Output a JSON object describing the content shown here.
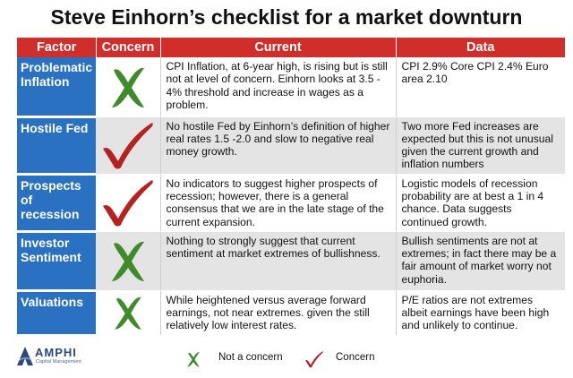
{
  "title": "Steve Einhorn’s checklist for a market downturn",
  "headers": {
    "factor": "Factor",
    "concern": "Concern",
    "current": "Current",
    "data": "Data"
  },
  "rows": [
    {
      "factor": "Problematic Inflation",
      "mark": "x-icon",
      "current": "CPI Inflation, at 6-year high, is rising but is still not at level of concern. Einhorn looks at 3.5 - 4% threshold  and increase in wages as a problem.",
      "data": "CPI 2.9% Core CPI 2.4% Euro area 2.10"
    },
    {
      "factor": "Hostile Fed",
      "mark": "check-icon",
      "current": "No hostile Fed by Einhorn’s definition of higher real rates 1.5 -2.0 and slow to negative real money growth.",
      "data": "Two more Fed increases are expected but this is not unusual given the current growth and inflation numbers"
    },
    {
      "factor": "Prospects of recession",
      "mark": "check-icon",
      "current": "No indicators to suggest higher prospects of recession; however, there is a general consensus that we are in the late stage of the current expansion.",
      "data": "Logistic models of recession probability are at best a 1 in 4 chance. Data suggests continued growth."
    },
    {
      "factor": "Investor Sentiment",
      "mark": "x-icon",
      "current": "Nothing to strongly suggest that current sentiment at market extremes of bullishness.",
      "data": "Bullish sentiments are not at extremes; in fact there may be a fair amount of market worry not euphoria."
    },
    {
      "factor": "Valuations",
      "mark": "x-icon",
      "current": "While heightened versus average forward earnings, not near extremes. given the still relatively low interest rates.",
      "data": "P/E ratios are not extremes albeit earnings have been high and unlikely to continue."
    }
  ],
  "legend": {
    "not_concern": "Not a concern",
    "concern": "Concern"
  },
  "logo": {
    "name": "AMPHI",
    "tagline": "Capital Management"
  },
  "colors": {
    "header": "#cf2e2a",
    "factor": "#2a71c1",
    "x_mark": "#3f8a2a",
    "check_mark": "#b42222"
  }
}
